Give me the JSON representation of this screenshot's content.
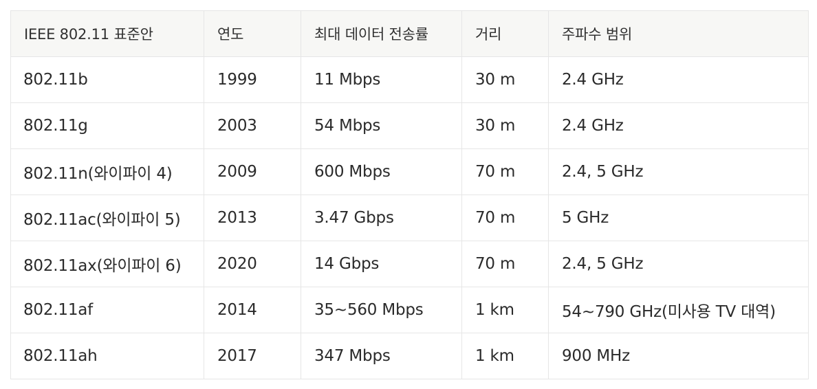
{
  "table": {
    "headers": [
      "IEEE 802.11 표준안",
      "연도",
      "최대 데이터 전송률",
      "거리",
      "주파수 범위"
    ],
    "rows": [
      [
        "802.11b",
        "1999",
        "11 Mbps",
        "30 m",
        "2.4 GHz"
      ],
      [
        "802.11g",
        "2003",
        "54 Mbps",
        "30 m",
        "2.4 GHz"
      ],
      [
        "802.11n(와이파이 4)",
        "2009",
        "600 Mbps",
        "70 m",
        "2.4, 5 GHz"
      ],
      [
        "802.11ac(와이파이 5)",
        "2013",
        "3.47 Gbps",
        "70 m",
        "5 GHz"
      ],
      [
        "802.11ax(와이파이 6)",
        "2020",
        "14 Gbps",
        "70 m",
        "2.4, 5 GHz"
      ],
      [
        "802.11af",
        "2014",
        "35~560 Mbps",
        "1 km",
        "54~790 GHz(미사용 TV 대역)"
      ],
      [
        "802.11ah",
        "2017",
        "347 Mbps",
        "1 km",
        "900 MHz"
      ]
    ]
  }
}
